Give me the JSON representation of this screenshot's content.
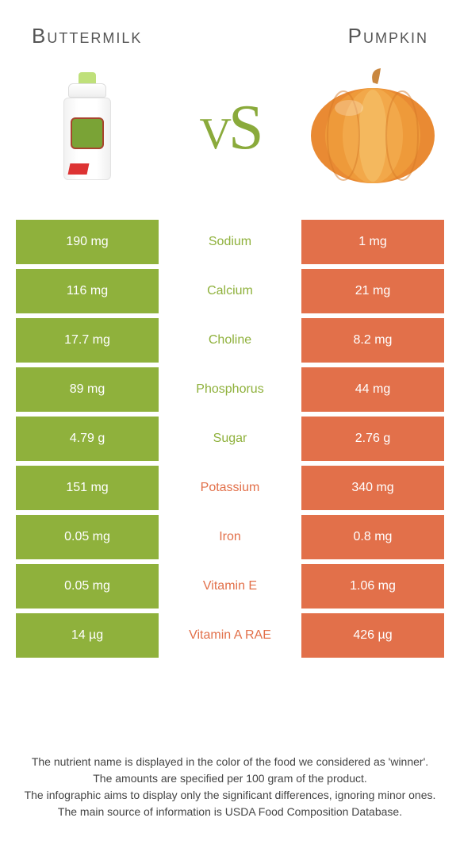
{
  "colors": {
    "green": "#8fb13c",
    "orange": "#e2704a",
    "vs_text": "#8aaa3b"
  },
  "header": {
    "left": "Buttermilk",
    "right": "Pumpkin",
    "vs": "vs"
  },
  "rows": [
    {
      "nutrient": "Sodium",
      "left": "190 mg",
      "right": "1 mg",
      "winner": "left"
    },
    {
      "nutrient": "Calcium",
      "left": "116 mg",
      "right": "21 mg",
      "winner": "left"
    },
    {
      "nutrient": "Choline",
      "left": "17.7 mg",
      "right": "8.2 mg",
      "winner": "left"
    },
    {
      "nutrient": "Phosphorus",
      "left": "89 mg",
      "right": "44 mg",
      "winner": "left"
    },
    {
      "nutrient": "Sugar",
      "left": "4.79 g",
      "right": "2.76 g",
      "winner": "left"
    },
    {
      "nutrient": "Potassium",
      "left": "151 mg",
      "right": "340 mg",
      "winner": "right"
    },
    {
      "nutrient": "Iron",
      "left": "0.05 mg",
      "right": "0.8 mg",
      "winner": "right"
    },
    {
      "nutrient": "Vitamin E",
      "left": "0.05 mg",
      "right": "1.06 mg",
      "winner": "right"
    },
    {
      "nutrient": "Vitamin A RAE",
      "left": "14 µg",
      "right": "426 µg",
      "winner": "right"
    }
  ],
  "footer": {
    "line1": "The nutrient name is displayed in the color of the food we considered as 'winner'.",
    "line2": "The amounts are specified per 100 gram of the product.",
    "line3": "The infographic aims to display only the significant differences, ignoring minor ones.",
    "line4": "The main source of information is USDA Food Composition Database."
  }
}
